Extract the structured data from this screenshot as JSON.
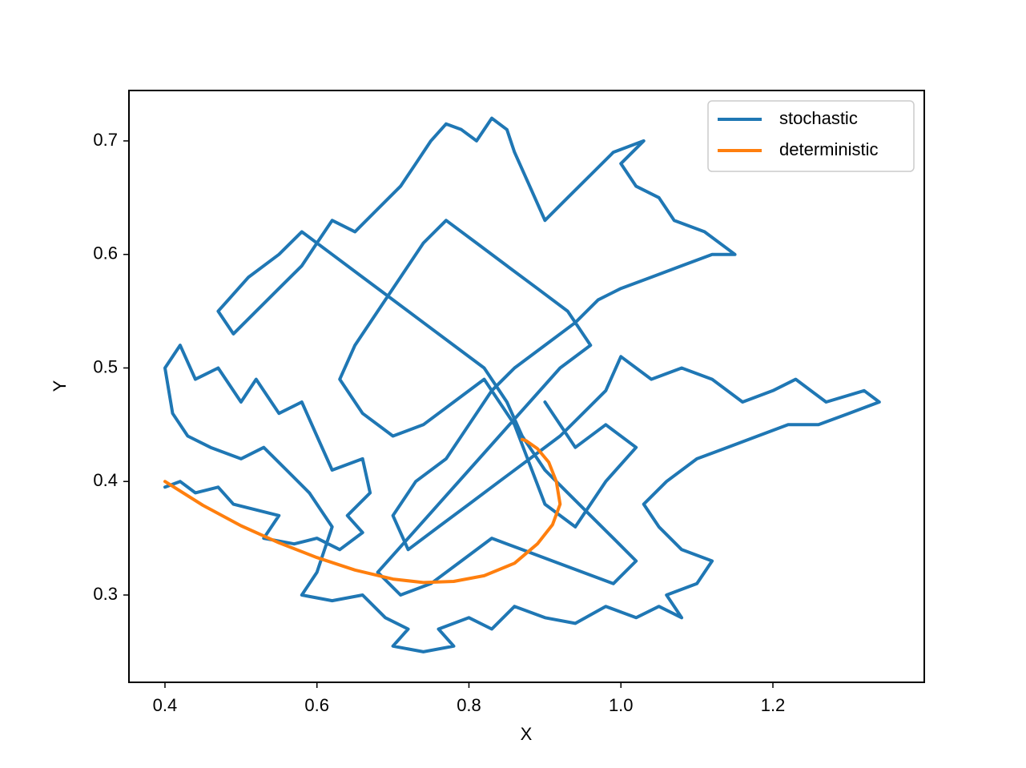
{
  "chart_data": {
    "type": "line",
    "x_label": "X",
    "y_label": "Y",
    "xlim": [
      0.3526,
      1.3992
    ],
    "ylim": [
      0.2231,
      0.7444
    ],
    "xticks": [
      0.4,
      0.6,
      0.8,
      {
        "value": 1,
        "label": "1.0"
      },
      1.2
    ],
    "yticks": [
      0.3,
      0.4,
      0.5,
      0.6,
      0.7
    ],
    "legend": "upper right",
    "series": [
      {
        "name": "stochastic",
        "color": "#1f77b4",
        "x": [
          0.4,
          0.42,
          0.44,
          0.47,
          0.49,
          0.52,
          0.55,
          0.53,
          0.57,
          0.6,
          0.63,
          0.66,
          0.64,
          0.67,
          0.66,
          0.62,
          0.6,
          0.58,
          0.55,
          0.52,
          0.5,
          0.47,
          0.44,
          0.42,
          0.4,
          0.41,
          0.43,
          0.46,
          0.5,
          0.53,
          0.56,
          0.59,
          0.62,
          0.6,
          0.58,
          0.62,
          0.66,
          0.69,
          0.72,
          0.7,
          0.74,
          0.78,
          0.76,
          0.8,
          0.83,
          0.86,
          0.9,
          0.94,
          0.98,
          1.02,
          1.05,
          1.08,
          1.06,
          1.1,
          1.12,
          1.08,
          1.05,
          1.03,
          1.06,
          1.1,
          1.14,
          1.18,
          1.22,
          1.26,
          1.3,
          1.34,
          1.32,
          1.27,
          1.23,
          1.2,
          1.16,
          1.12,
          1.08,
          1.04,
          1.0,
          0.98,
          0.95,
          0.92,
          0.88,
          0.84,
          0.8,
          0.76,
          0.72,
          0.7,
          0.73,
          0.77,
          0.8,
          0.83,
          0.86,
          0.9,
          0.94,
          0.97,
          1.0,
          1.04,
          1.08,
          1.12,
          1.15,
          1.11,
          1.07,
          1.05,
          1.02,
          1.0,
          1.03,
          0.99,
          0.96,
          0.93,
          0.9,
          0.88,
          0.86,
          0.85,
          0.83,
          0.81,
          0.79,
          0.77,
          0.75,
          0.73,
          0.71,
          0.68,
          0.65,
          0.62,
          0.6,
          0.58,
          0.55,
          0.52,
          0.49,
          0.47,
          0.51,
          0.55,
          0.58,
          0.62,
          0.66,
          0.7,
          0.74,
          0.78,
          0.82,
          0.85,
          0.87,
          0.9,
          0.93,
          0.96,
          0.99,
          1.02,
          0.99,
          0.95,
          0.91,
          0.87,
          0.83,
          0.79,
          0.75,
          0.71,
          0.68,
          0.72,
          0.76,
          0.8,
          0.84,
          0.88,
          0.92,
          0.96,
          0.93,
          0.89,
          0.85,
          0.81,
          0.77,
          0.74,
          0.71,
          0.68,
          0.65,
          0.63,
          0.66,
          0.7,
          0.74,
          0.78,
          0.82,
          0.86,
          0.9,
          0.94,
          0.98,
          1.02,
          0.98,
          0.94,
          0.9
        ],
        "values": [
          0.395,
          0.4,
          0.39,
          0.395,
          0.38,
          0.375,
          0.37,
          0.35,
          0.345,
          0.35,
          0.34,
          0.355,
          0.37,
          0.39,
          0.42,
          0.41,
          0.44,
          0.47,
          0.46,
          0.49,
          0.47,
          0.5,
          0.49,
          0.52,
          0.5,
          0.46,
          0.44,
          0.43,
          0.42,
          0.43,
          0.41,
          0.39,
          0.36,
          0.32,
          0.3,
          0.295,
          0.3,
          0.28,
          0.27,
          0.255,
          0.25,
          0.255,
          0.27,
          0.28,
          0.27,
          0.29,
          0.28,
          0.275,
          0.29,
          0.28,
          0.29,
          0.28,
          0.3,
          0.31,
          0.33,
          0.34,
          0.36,
          0.38,
          0.4,
          0.42,
          0.43,
          0.44,
          0.45,
          0.45,
          0.46,
          0.47,
          0.48,
          0.47,
          0.49,
          0.48,
          0.47,
          0.49,
          0.5,
          0.49,
          0.51,
          0.48,
          0.46,
          0.44,
          0.42,
          0.4,
          0.38,
          0.36,
          0.34,
          0.37,
          0.4,
          0.42,
          0.45,
          0.48,
          0.5,
          0.52,
          0.54,
          0.56,
          0.57,
          0.58,
          0.59,
          0.6,
          0.6,
          0.62,
          0.63,
          0.65,
          0.66,
          0.68,
          0.7,
          0.69,
          0.67,
          0.65,
          0.63,
          0.66,
          0.69,
          0.71,
          0.72,
          0.7,
          0.71,
          0.715,
          0.7,
          0.68,
          0.66,
          0.64,
          0.62,
          0.63,
          0.61,
          0.59,
          0.57,
          0.55,
          0.53,
          0.55,
          0.58,
          0.6,
          0.62,
          0.6,
          0.58,
          0.56,
          0.54,
          0.52,
          0.5,
          0.47,
          0.44,
          0.41,
          0.39,
          0.37,
          0.35,
          0.33,
          0.31,
          0.32,
          0.33,
          0.34,
          0.35,
          0.33,
          0.31,
          0.3,
          0.32,
          0.35,
          0.38,
          0.41,
          0.44,
          0.47,
          0.5,
          0.52,
          0.55,
          0.57,
          0.59,
          0.61,
          0.63,
          0.61,
          0.58,
          0.55,
          0.52,
          0.49,
          0.46,
          0.44,
          0.45,
          0.47,
          0.49,
          0.45,
          0.38,
          0.36,
          0.4,
          0.43,
          0.45,
          0.43,
          0.47
        ]
      },
      {
        "name": "deterministic",
        "color": "#ff7f0e",
        "x": [
          0.4,
          0.45,
          0.5,
          0.55,
          0.6,
          0.65,
          0.7,
          0.74,
          0.78,
          0.82,
          0.86,
          0.89,
          0.91,
          0.92,
          0.915,
          0.905,
          0.89,
          0.875,
          0.87
        ],
        "values": [
          0.4,
          0.379,
          0.361,
          0.346,
          0.333,
          0.322,
          0.314,
          0.311,
          0.312,
          0.317,
          0.328,
          0.345,
          0.362,
          0.38,
          0.4,
          0.417,
          0.429,
          0.436,
          0.437
        ]
      }
    ]
  }
}
